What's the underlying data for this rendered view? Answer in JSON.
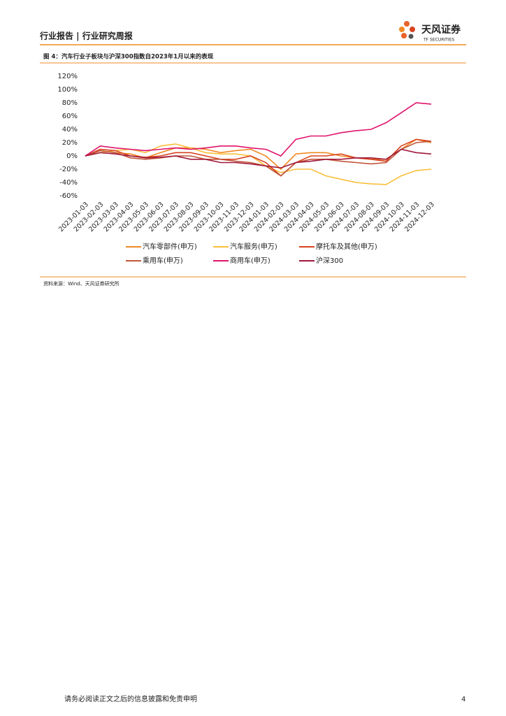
{
  "header": {
    "title": "行业报告 | 行业研究周报",
    "logo": "天风证券",
    "logo_sub": "TF SECURITIES"
  },
  "figure_title": "图 4：汽车行业子板块与沪深300指数自2023年1月以来的表现",
  "chart_data": {
    "type": "line",
    "categories": [
      "2023-01-03",
      "2023-02-03",
      "2023-03-03",
      "2023-04-03",
      "2023-05-03",
      "2023-06-03",
      "2023-07-03",
      "2023-08-03",
      "2023-09-03",
      "2023-10-03",
      "2023-11-03",
      "2023-12-03",
      "2024-01-03",
      "2024-02-03",
      "2024-03-03",
      "2024-04-03",
      "2024-05-03",
      "2024-06-03",
      "2024-07-03",
      "2024-08-03",
      "2024-09-03",
      "2024-10-03",
      "2024-11-03",
      "2024-12-03"
    ],
    "ylim": [
      -60,
      120
    ],
    "yticks": [
      {
        "value": -60,
        "label": "-60%"
      },
      {
        "value": -40,
        "label": "-40%"
      },
      {
        "value": -20,
        "label": "-20%"
      },
      {
        "value": 0,
        "label": "0%"
      },
      {
        "value": 20,
        "label": "20%"
      },
      {
        "value": 40,
        "label": "40%"
      },
      {
        "value": 60,
        "label": "60%"
      },
      {
        "value": 80,
        "label": "80%"
      },
      {
        "value": 100,
        "label": "100%"
      },
      {
        "value": 120,
        "label": "120%"
      }
    ],
    "series": [
      {
        "name": "汽车零部件(申万)",
        "color": "#f08a24",
        "values": [
          0,
          8,
          5,
          3,
          -3,
          5,
          12,
          12,
          10,
          5,
          8,
          10,
          0,
          -20,
          3,
          5,
          5,
          0,
          -3,
          -5,
          -5,
          10,
          25,
          20
        ]
      },
      {
        "name": "汽车服务(申万)",
        "color": "#f8bf3a",
        "values": [
          0,
          5,
          8,
          10,
          5,
          15,
          18,
          12,
          5,
          3,
          3,
          0,
          -15,
          -25,
          -20,
          -20,
          -30,
          -35,
          -40,
          -42,
          -43,
          -30,
          -22,
          -20
        ]
      },
      {
        "name": "摩托车及其他(申万)",
        "color": "#d9431f",
        "values": [
          0,
          10,
          8,
          0,
          -2,
          0,
          5,
          5,
          0,
          -5,
          -5,
          0,
          -10,
          -30,
          -10,
          0,
          0,
          3,
          -3,
          -5,
          -8,
          15,
          25,
          22
        ]
      },
      {
        "name": "乘用车(申万)",
        "color": "#c0553a",
        "values": [
          0,
          8,
          5,
          -3,
          -5,
          -3,
          0,
          0,
          -5,
          -5,
          -8,
          -10,
          -15,
          -30,
          -10,
          -5,
          -5,
          -8,
          -10,
          -12,
          -10,
          10,
          20,
          22
        ]
      },
      {
        "name": "商用车(申万)",
        "color": "#e0136b",
        "values": [
          0,
          15,
          12,
          10,
          8,
          10,
          12,
          10,
          12,
          15,
          15,
          12,
          10,
          0,
          25,
          30,
          30,
          35,
          38,
          40,
          50,
          65,
          80,
          78
        ]
      },
      {
        "name": "沪深300",
        "color": "#a0183a",
        "values": [
          0,
          5,
          3,
          0,
          -3,
          -2,
          0,
          -5,
          -5,
          -10,
          -10,
          -12,
          -15,
          -18,
          -10,
          -8,
          -5,
          -5,
          -3,
          -3,
          -5,
          10,
          5,
          3
        ]
      }
    ]
  },
  "source": "资料来源：Wind、天风证券研究所",
  "footer": {
    "disclaimer": "请务必阅读正文之后的信息披露和免责申明",
    "page": "4"
  }
}
